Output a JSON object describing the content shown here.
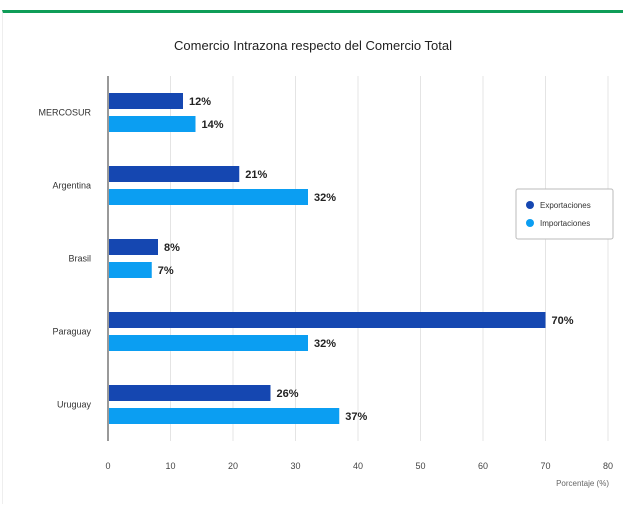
{
  "chart_data": {
    "type": "bar",
    "orientation": "horizontal",
    "title": "Comercio Intrazona respecto del Comercio Total",
    "xlabel": "Porcentaje (%)",
    "ylabel": "",
    "categories": [
      "MERCOSUR",
      "Argentina",
      "Brasil",
      "Paraguay",
      "Uruguay"
    ],
    "series": [
      {
        "name": "Exportaciones",
        "color": "#1547b1",
        "values": [
          12,
          21,
          8,
          70,
          26
        ]
      },
      {
        "name": "Importaciones",
        "color": "#0b9ef2",
        "values": [
          14,
          32,
          7,
          32,
          37
        ]
      }
    ],
    "xlim": [
      0,
      80
    ],
    "xticks": [
      0,
      10,
      20,
      30,
      40,
      50,
      60,
      70,
      80
    ],
    "value_suffix": "%",
    "grid": true,
    "legend_position": "right"
  }
}
